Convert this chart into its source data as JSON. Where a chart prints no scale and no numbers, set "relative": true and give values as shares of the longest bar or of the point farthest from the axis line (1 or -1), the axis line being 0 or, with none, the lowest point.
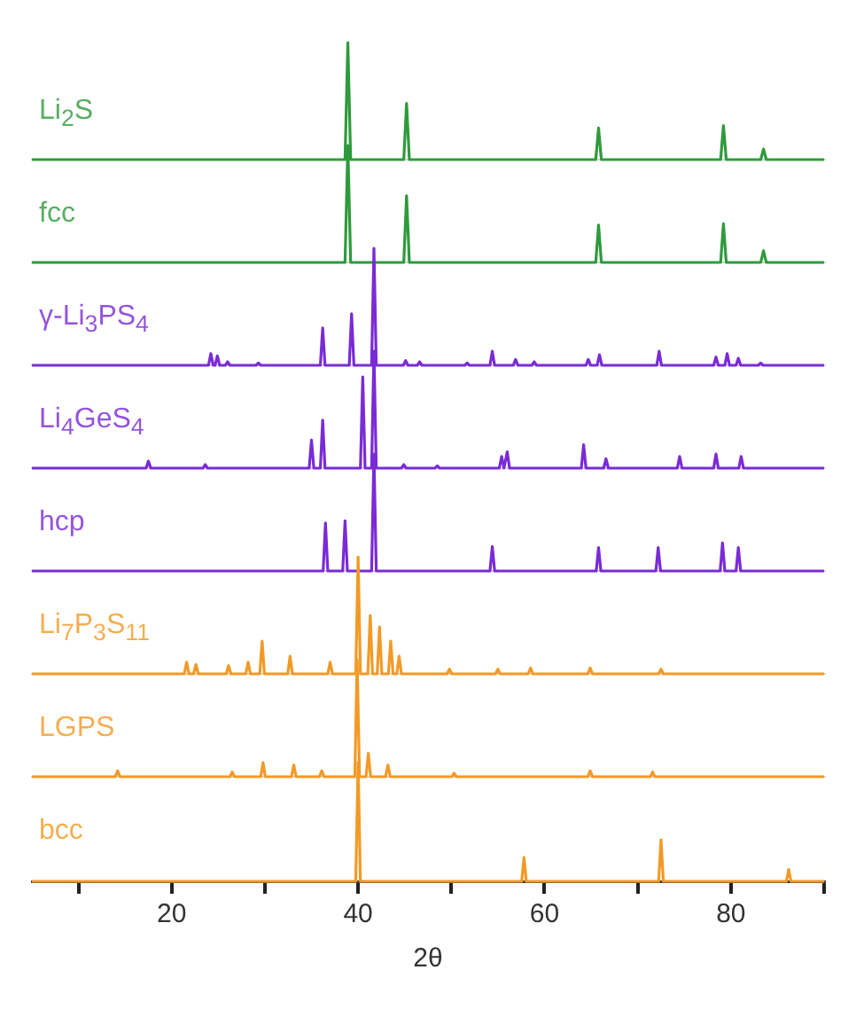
{
  "chart_data": [
    {
      "type": "line",
      "relative": true,
      "tick_labels": false,
      "xlim": [
        5,
        90
      ],
      "grid": false,
      "legend": false,
      "marker": "none",
      "series": [
        {
          "name": "Li$_{2}$S",
          "color": "#2f9a3c",
          "x": [
            5,
            38.6,
            38.9,
            39.2,
            44.9,
            45.2,
            45.5,
            65.5,
            65.8,
            66.1,
            78.9,
            79.2,
            79.5,
            83.2,
            83.5,
            83.8,
            90
          ],
          "values": [
            0,
            0,
            1,
            0,
            0,
            0.48,
            0,
            0,
            0.27,
            0,
            0,
            0.29,
            0,
            0,
            0.09,
            0,
            0
          ]
        }
      ]
    },
    {
      "type": "line",
      "relative": true,
      "tick_labels": false,
      "xlim": [
        5,
        90
      ],
      "grid": false,
      "legend": false,
      "marker": "none",
      "series": [
        {
          "name": "fcc",
          "color": "#2f9a3c",
          "x": [
            5,
            38.6,
            38.9,
            39.2,
            44.9,
            45.2,
            45.5,
            65.5,
            65.8,
            66.1,
            78.9,
            79.2,
            79.5,
            83.2,
            83.5,
            83.8,
            90
          ],
          "values": [
            0,
            0,
            1,
            0,
            0,
            0.57,
            0,
            0,
            0.32,
            0,
            0,
            0.33,
            0,
            0,
            0.1,
            0,
            0
          ]
        }
      ]
    },
    {
      "type": "line",
      "relative": true,
      "tick_labels": false,
      "xlim": [
        5,
        90
      ],
      "grid": false,
      "legend": false,
      "marker": "none",
      "series": [
        {
          "name": "γ-Li$_{3}$PS$_{4}$",
          "color": "#7a2bd6",
          "x": [
            5,
            23.95,
            24.2,
            24.45,
            24.65,
            24.9,
            25.15,
            25.75,
            26,
            26.25,
            29.05,
            29.3,
            29.55,
            35.95,
            36.2,
            36.45,
            39.05,
            39.3,
            39.55,
            41.45,
            41.7,
            41.95,
            44.85,
            45.1,
            45.35,
            46.35,
            46.6,
            46.85,
            51.45,
            51.7,
            51.95,
            54.15,
            54.4,
            54.65,
            56.65,
            56.9,
            57.15,
            58.65,
            58.9,
            59.15,
            64.45,
            64.7,
            64.95,
            65.65,
            65.9,
            66.15,
            72.05,
            72.3,
            72.55,
            78.15,
            78.4,
            78.65,
            79.35,
            79.6,
            79.85,
            80.55,
            80.8,
            81.05,
            82.95,
            83.2,
            83.45,
            90
          ],
          "values": [
            0,
            0,
            0.1,
            0,
            0,
            0.08,
            0,
            0,
            0.03,
            0,
            0,
            0.02,
            0,
            0,
            0.32,
            0,
            0,
            0.44,
            0,
            0,
            1,
            0,
            0,
            0.04,
            0,
            0,
            0.03,
            0,
            0,
            0.02,
            0,
            0,
            0.12,
            0,
            0,
            0.05,
            0,
            0,
            0.03,
            0,
            0,
            0.05,
            0,
            0,
            0.09,
            0,
            0,
            0.12,
            0,
            0,
            0.07,
            0,
            0,
            0.1,
            0,
            0,
            0.06,
            0,
            0,
            0.02,
            0,
            0
          ]
        }
      ]
    },
    {
      "type": "line",
      "relative": true,
      "tick_labels": false,
      "xlim": [
        5,
        90
      ],
      "grid": false,
      "legend": false,
      "marker": "none",
      "series": [
        {
          "name": "Li$_{4}$GeS$_{4}$",
          "color": "#7a2bd6",
          "x": [
            5,
            17.25,
            17.5,
            17.75,
            23.35,
            23.6,
            23.85,
            34.75,
            35,
            35.25,
            35.95,
            36.2,
            36.45,
            40.25,
            40.5,
            40.75,
            41.45,
            41.7,
            41.95,
            44.65,
            44.9,
            45.15,
            48.25,
            48.5,
            48.75,
            55.15,
            55.4,
            55.65,
            55.75,
            56,
            56.25,
            63.95,
            64.2,
            64.45,
            66.35,
            66.6,
            66.85,
            74.25,
            74.5,
            74.75,
            78.15,
            78.4,
            78.65,
            80.85,
            81.1,
            81.35,
            90
          ],
          "values": [
            0,
            0,
            0.06,
            0,
            0,
            0.03,
            0,
            0,
            0.24,
            0,
            0,
            0.41,
            0,
            0,
            0.78,
            0,
            0,
            1,
            0,
            0,
            0.03,
            0,
            0,
            0.02,
            0,
            0,
            0.1,
            0,
            0,
            0.14,
            0,
            0,
            0.2,
            0,
            0,
            0.08,
            0,
            0,
            0.1,
            0,
            0,
            0.12,
            0,
            0,
            0.1,
            0,
            0
          ]
        }
      ]
    },
    {
      "type": "line",
      "relative": true,
      "tick_labels": false,
      "xlim": [
        5,
        90
      ],
      "grid": false,
      "legend": false,
      "marker": "none",
      "series": [
        {
          "name": "hcp",
          "color": "#7a2bd6",
          "x": [
            5,
            36.25,
            36.5,
            36.75,
            38.35,
            38.6,
            38.85,
            41.45,
            41.7,
            41.95,
            54.15,
            54.4,
            54.65,
            65.55,
            65.8,
            66.05,
            71.95,
            72.2,
            72.45,
            78.85,
            79.1,
            79.35,
            80.55,
            80.8,
            81.05,
            90
          ],
          "values": [
            0,
            0,
            0.41,
            0,
            0,
            0.43,
            0,
            0,
            1,
            0,
            0,
            0.21,
            0,
            0,
            0.2,
            0,
            0,
            0.2,
            0,
            0,
            0.24,
            0,
            0,
            0.2,
            0,
            0
          ]
        }
      ]
    },
    {
      "type": "line",
      "relative": true,
      "tick_labels": false,
      "xlim": [
        5,
        90
      ],
      "grid": false,
      "legend": false,
      "marker": "none",
      "series": [
        {
          "name": "Li$_{7}$P$_{3}$S$_{11}$",
          "color": "#f29a26",
          "x": [
            5,
            21.35,
            21.6,
            21.85,
            22.35,
            22.6,
            22.85,
            25.85,
            26.1,
            26.35,
            27.95,
            28.2,
            28.45,
            29.45,
            29.7,
            29.95,
            32.45,
            32.7,
            32.95,
            36.75,
            37,
            37.25,
            39.75,
            40,
            40.25,
            41.05,
            41.3,
            41.55,
            42.05,
            42.3,
            42.55,
            43.25,
            43.5,
            43.75,
            44.15,
            44.4,
            44.65,
            49.55,
            49.8,
            50.05,
            54.75,
            55,
            55.25,
            58.25,
            58.5,
            58.75,
            64.65,
            64.9,
            65.15,
            72.25,
            72.5,
            72.75,
            90
          ],
          "values": [
            0,
            0,
            0.1,
            0,
            0,
            0.08,
            0,
            0,
            0.07,
            0,
            0,
            0.1,
            0,
            0,
            0.28,
            0,
            0,
            0.15,
            0,
            0,
            0.1,
            0,
            0,
            1,
            0,
            0,
            0.5,
            0,
            0,
            0.4,
            0,
            0,
            0.28,
            0,
            0,
            0.15,
            0,
            0,
            0.04,
            0,
            0,
            0.04,
            0,
            0,
            0.05,
            0,
            0,
            0.05,
            0,
            0,
            0.04,
            0,
            0
          ]
        }
      ]
    },
    {
      "type": "line",
      "relative": true,
      "tick_labels": false,
      "xlim": [
        5,
        90
      ],
      "grid": false,
      "legend": false,
      "marker": "none",
      "series": [
        {
          "name": "LGPS",
          "color": "#f29a26",
          "x": [
            5,
            13.95,
            14.2,
            14.45,
            26.25,
            26.5,
            26.75,
            29.55,
            29.8,
            30.05,
            32.85,
            33.1,
            33.35,
            35.85,
            36.1,
            36.35,
            39.65,
            39.9,
            40.15,
            40.85,
            41.1,
            41.35,
            42.95,
            43.2,
            43.45,
            50.05,
            50.3,
            50.55,
            64.65,
            64.9,
            65.15,
            71.35,
            71.6,
            71.85,
            90
          ],
          "values": [
            0,
            0,
            0.05,
            0,
            0,
            0.04,
            0,
            0,
            0.12,
            0,
            0,
            0.1,
            0,
            0,
            0.05,
            0,
            0,
            1,
            0,
            0,
            0.2,
            0,
            0,
            0.1,
            0,
            0,
            0.03,
            0,
            0,
            0.05,
            0,
            0,
            0.04,
            0,
            0
          ]
        }
      ]
    },
    {
      "type": "line",
      "relative": true,
      "tick_labels": "x",
      "xlim": [
        5,
        90
      ],
      "xticks": [
        {
          "value": 10,
          "label": null
        },
        20,
        {
          "value": 30,
          "label": null
        },
        40,
        {
          "value": 50,
          "label": null
        },
        60,
        {
          "value": 70,
          "label": null
        },
        80,
        {
          "value": 90,
          "label": null
        }
      ],
      "xlabel": "2θ",
      "grid": false,
      "legend": false,
      "marker": "none",
      "series": [
        {
          "name": "bcc",
          "color": "#f29a26",
          "x": [
            5,
            39.75,
            40,
            40.25,
            57.55,
            57.8,
            58.05,
            72.25,
            72.5,
            72.75,
            85.95,
            86.2,
            86.45,
            90
          ],
          "values": [
            0,
            0,
            1,
            0,
            0,
            0.2,
            0,
            0,
            0.35,
            0,
            0,
            0.1,
            0,
            0
          ]
        }
      ]
    }
  ]
}
